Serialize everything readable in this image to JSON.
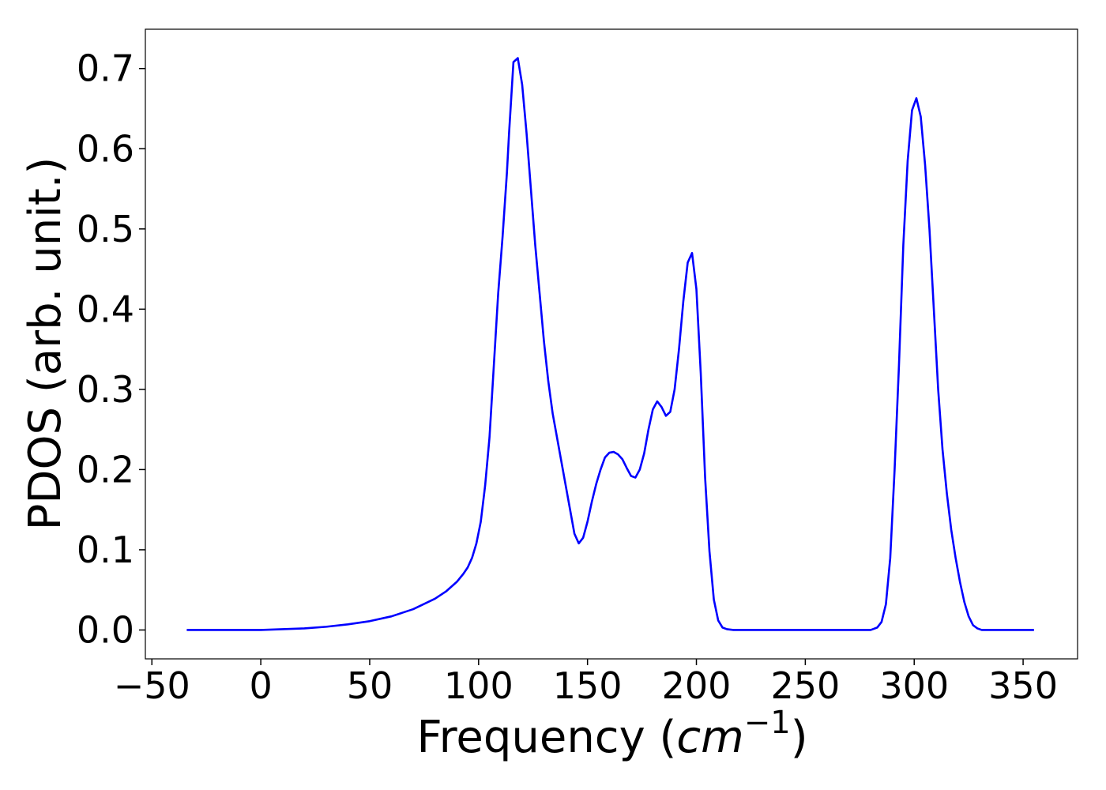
{
  "chart_data": {
    "type": "line",
    "xlabel": {
      "prefix": "Frequency (",
      "unit": "cm",
      "exponent": "−1",
      "suffix": ")"
    },
    "ylabel": "PDOS (arb. unit.)",
    "x": [
      -34,
      0,
      10,
      20,
      30,
      40,
      50,
      60,
      70,
      80,
      85,
      90,
      93,
      95,
      97,
      99,
      101,
      103,
      105,
      107,
      109,
      111,
      113,
      114,
      116,
      118,
      120,
      122,
      124,
      126,
      128,
      130,
      132,
      134,
      136,
      138,
      140,
      142,
      144,
      146,
      148,
      150,
      152,
      154,
      156,
      158,
      160,
      162,
      164,
      166,
      168,
      170,
      172,
      174,
      176,
      178,
      180,
      182,
      184,
      186,
      188,
      190,
      192,
      194,
      196,
      198,
      200,
      202,
      204,
      206,
      208,
      210,
      212,
      214,
      217,
      280,
      281,
      283,
      285,
      287,
      289,
      291,
      293,
      295,
      297,
      299,
      301,
      303,
      305,
      307,
      309,
      311,
      313,
      315,
      317,
      319,
      321,
      323,
      325,
      327,
      329,
      331,
      355
    ],
    "values": [
      0,
      0,
      0.001,
      0.002,
      0.004,
      0.007,
      0.011,
      0.017,
      0.026,
      0.039,
      0.048,
      0.06,
      0.07,
      0.078,
      0.09,
      0.108,
      0.135,
      0.18,
      0.24,
      0.33,
      0.42,
      0.49,
      0.57,
      0.62,
      0.708,
      0.713,
      0.68,
      0.62,
      0.55,
      0.48,
      0.42,
      0.36,
      0.31,
      0.27,
      0.24,
      0.21,
      0.18,
      0.15,
      0.12,
      0.108,
      0.115,
      0.135,
      0.16,
      0.182,
      0.2,
      0.215,
      0.221,
      0.222,
      0.219,
      0.213,
      0.202,
      0.192,
      0.19,
      0.2,
      0.22,
      0.25,
      0.275,
      0.285,
      0.278,
      0.267,
      0.272,
      0.3,
      0.35,
      0.41,
      0.458,
      0.47,
      0.425,
      0.32,
      0.19,
      0.098,
      0.038,
      0.012,
      0.003,
      0.001,
      0,
      0,
      0.001,
      0.003,
      0.01,
      0.032,
      0.09,
      0.2,
      0.33,
      0.48,
      0.585,
      0.648,
      0.663,
      0.64,
      0.58,
      0.5,
      0.4,
      0.3,
      0.225,
      0.17,
      0.125,
      0.09,
      0.06,
      0.035,
      0.017,
      0.006,
      0.002,
      0,
      0
    ],
    "color": "#0000ff",
    "xlim": [
      -53,
      375
    ],
    "ylim": [
      -0.036,
      0.749
    ],
    "xticks": [
      {
        "value": -50,
        "label": "−50"
      },
      0,
      50,
      100,
      150,
      200,
      250,
      300,
      350
    ],
    "yticks": [
      {
        "value": 0,
        "label": "0.0"
      },
      0.1,
      0.2,
      0.3,
      0.4,
      0.5,
      0.6,
      0.7
    ],
    "grid": false
  }
}
